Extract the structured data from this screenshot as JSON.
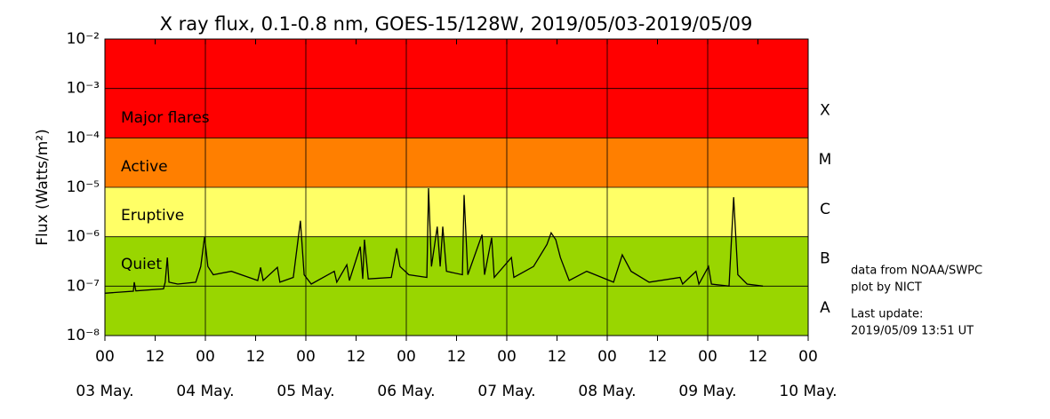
{
  "chart_data": {
    "type": "line",
    "title": "X ray flux, 0.1-0.8 nm, GOES-15/128W, 2019/05/03-2019/05/09",
    "y_label": "Flux (Watts/m²)",
    "log_y": true,
    "xlim": [
      0,
      168
    ],
    "ylim": [
      1e-08,
      0.01
    ],
    "xticks": [
      {
        "value": 0,
        "label": "00"
      },
      {
        "value": 12,
        "label": "12"
      },
      {
        "value": 24,
        "label": "00"
      },
      {
        "value": 36,
        "label": "12"
      },
      {
        "value": 48,
        "label": "00"
      },
      {
        "value": 60,
        "label": "12"
      },
      {
        "value": 72,
        "label": "00"
      },
      {
        "value": 84,
        "label": "12"
      },
      {
        "value": 96,
        "label": "00"
      },
      {
        "value": 108,
        "label": "12"
      },
      {
        "value": 120,
        "label": "00"
      },
      {
        "value": 132,
        "label": "12"
      },
      {
        "value": 144,
        "label": "00"
      },
      {
        "value": 156,
        "label": "12"
      },
      {
        "value": 168,
        "label": "00"
      }
    ],
    "date_labels": [
      {
        "value": 0,
        "label": "03 May."
      },
      {
        "value": 24,
        "label": "04 May."
      },
      {
        "value": 48,
        "label": "05 May."
      },
      {
        "value": 72,
        "label": "06 May."
      },
      {
        "value": 96,
        "label": "07 May."
      },
      {
        "value": 120,
        "label": "08 May."
      },
      {
        "value": 144,
        "label": "09 May."
      },
      {
        "value": 168,
        "label": "10 May."
      }
    ],
    "yticks": [
      {
        "value": 1e-08,
        "label": "10⁻⁸"
      },
      {
        "value": 1e-07,
        "label": "10⁻⁷"
      },
      {
        "value": 1e-06,
        "label": "10⁻⁶"
      },
      {
        "value": 1e-05,
        "label": "10⁻⁵"
      },
      {
        "value": 0.0001,
        "label": "10⁻⁴"
      },
      {
        "value": 0.001,
        "label": "10⁻³"
      },
      {
        "value": 0.01,
        "label": "10⁻²"
      }
    ],
    "bands": [
      {
        "name": "Major flares",
        "low": 0.0001,
        "high": 0.01,
        "color": "#ff0000"
      },
      {
        "name": "Active",
        "low": 1e-05,
        "high": 0.0001,
        "color": "#ff7f00"
      },
      {
        "name": "Eruptive",
        "low": 1e-06,
        "high": 1e-05,
        "color": "#ffff66"
      },
      {
        "name": "Quiet",
        "low": 1e-08,
        "high": 1e-06,
        "color": "#99d600"
      }
    ],
    "classes": [
      {
        "label": "X",
        "low": 0.0001
      },
      {
        "label": "M",
        "low": 1e-05
      },
      {
        "label": "C",
        "low": 1e-06
      },
      {
        "label": "B",
        "low": 1e-07
      },
      {
        "label": "A",
        "low": 1e-08
      }
    ],
    "notes": [
      "data from NOAA/SWPC",
      "plot by NICT",
      "Last update:",
      "2019/05/09 13:51 UT"
    ],
    "series": [
      {
        "name": "GOES-15",
        "color": "#000000",
        "x": [
          0,
          6.8,
          7.0,
          7.4,
          14.0,
          14.4,
          14.9,
          15.3,
          17.4,
          21.7,
          22.9,
          23.8,
          24.6,
          25.9,
          30.2,
          36.5,
          37.2,
          37.8,
          41.2,
          41.8,
          45.0,
          46.7,
          47.6,
          49.3,
          54.8,
          55.4,
          57.8,
          58.4,
          61.0,
          61.6,
          62.0,
          62.9,
          68.4,
          69.7,
          70.5,
          72.6,
          76.9,
          77.3,
          78.0,
          79.4,
          80.1,
          80.7,
          81.6,
          85.4,
          85.8,
          86.7,
          90.1,
          90.7,
          92.4,
          93.0,
          97.1,
          97.7,
          102.4,
          105.6,
          106.6,
          107.7,
          108.8,
          110.9,
          115.1,
          121.5,
          123.6,
          125.7,
          130.0,
          137.4,
          138.0,
          141.2,
          141.9,
          144.2,
          144.9,
          149.1,
          150.2,
          151.2,
          153.4,
          157.2
        ],
        "values": [
          7.2e-08,
          7.9e-08,
          1.2e-07,
          8e-08,
          8.8e-08,
          1.2e-07,
          3.8e-07,
          1.2e-07,
          1.1e-07,
          1.2e-07,
          2.5e-07,
          1e-06,
          2.5e-07,
          1.7e-07,
          2e-07,
          1.3e-07,
          2.4e-07,
          1.3e-07,
          2.4e-07,
          1.2e-07,
          1.5e-07,
          2.1e-06,
          1.7e-07,
          1.1e-07,
          2e-07,
          1.2e-07,
          2.7e-07,
          1.3e-07,
          6.3e-07,
          1.4e-07,
          8.7e-07,
          1.4e-07,
          1.5e-07,
          5.8e-07,
          2.5e-07,
          1.7e-07,
          1.5e-07,
          9.6e-06,
          2.5e-07,
          1.6e-06,
          2.5e-07,
          1.6e-06,
          2e-07,
          1.7e-07,
          7e-06,
          1.7e-07,
          1.1e-06,
          1.7e-07,
          9.6e-07,
          1.5e-07,
          3.8e-07,
          1.5e-07,
          2.5e-07,
          7e-07,
          1.2e-06,
          8.7e-07,
          3.8e-07,
          1.3e-07,
          2e-07,
          1.2e-07,
          4.3e-07,
          2e-07,
          1.2e-07,
          1.5e-07,
          1.1e-07,
          2e-07,
          1.1e-07,
          2.5e-07,
          1.1e-07,
          1e-07,
          6.3e-06,
          1.7e-07,
          1.1e-07,
          1e-07
        ]
      }
    ]
  }
}
